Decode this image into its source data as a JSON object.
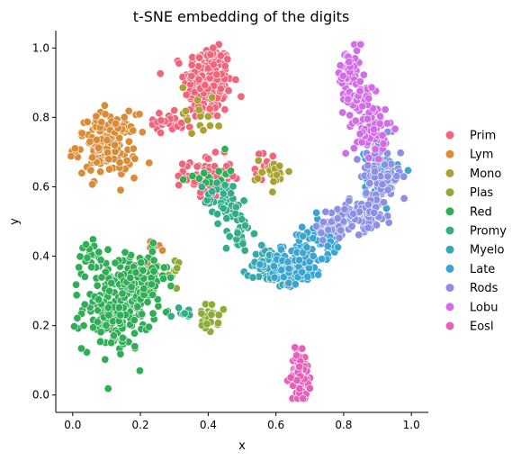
{
  "chart_data": {
    "type": "scatter",
    "title": "t-SNE embedding of the digits",
    "xlabel": "x",
    "ylabel": "y",
    "xlim": [
      -0.05,
      1.05
    ],
    "ylim": [
      -0.05,
      1.05
    ],
    "xticks": [
      "0.0",
      "0.2",
      "0.4",
      "0.6",
      "0.8",
      "1.0"
    ],
    "yticks": [
      "0.0",
      "0.2",
      "0.4",
      "0.6",
      "0.8",
      "1.0"
    ],
    "grid": false,
    "legend_position": "right",
    "series": [
      {
        "name": "Prim",
        "color": "#f0657a",
        "clusters": [
          {
            "cx": 0.4,
            "cy": 0.9,
            "sx": 0.035,
            "sy": 0.055,
            "n": 230
          },
          {
            "cx": 0.4,
            "cy": 0.63,
            "sx": 0.035,
            "sy": 0.03,
            "n": 70
          },
          {
            "cx": 0.29,
            "cy": 0.79,
            "sx": 0.04,
            "sy": 0.015,
            "n": 25
          },
          {
            "cx": 0.58,
            "cy": 0.66,
            "sx": 0.02,
            "sy": 0.02,
            "n": 15
          }
        ]
      },
      {
        "name": "Lym",
        "color": "#d98b35",
        "clusters": [
          {
            "cx": 0.1,
            "cy": 0.72,
            "sx": 0.045,
            "sy": 0.045,
            "n": 150
          },
          {
            "cx": 0.25,
            "cy": 0.4,
            "sx": 0.02,
            "sy": 0.03,
            "n": 10
          }
        ]
      },
      {
        "name": "Mono",
        "color": "#a8a230",
        "clusters": [
          {
            "cx": 0.59,
            "cy": 0.64,
            "sx": 0.025,
            "sy": 0.02,
            "n": 25
          },
          {
            "cx": 0.38,
            "cy": 0.82,
            "sx": 0.03,
            "sy": 0.04,
            "n": 15
          }
        ]
      },
      {
        "name": "Plas",
        "color": "#8dab38",
        "clusters": [
          {
            "cx": 0.4,
            "cy": 0.22,
            "sx": 0.015,
            "sy": 0.02,
            "n": 25
          },
          {
            "cx": 0.28,
            "cy": 0.36,
            "sx": 0.02,
            "sy": 0.03,
            "n": 10
          }
        ]
      },
      {
        "name": "Red",
        "color": "#2fae56",
        "clusters": [
          {
            "cx": 0.13,
            "cy": 0.25,
            "sx": 0.05,
            "sy": 0.06,
            "n": 200
          },
          {
            "cx": 0.2,
            "cy": 0.34,
            "sx": 0.04,
            "sy": 0.04,
            "n": 90
          },
          {
            "cx": 0.06,
            "cy": 0.4,
            "sx": 0.02,
            "sy": 0.03,
            "n": 20
          },
          {
            "cx": 0.4,
            "cy": 0.64,
            "sx": 0.03,
            "sy": 0.02,
            "n": 15
          }
        ]
      },
      {
        "name": "Promy",
        "color": "#33ac8a",
        "clusters": [
          {
            "cx": 0.45,
            "cy": 0.56,
            "sx": 0.03,
            "sy": 0.03,
            "n": 45
          },
          {
            "cx": 0.49,
            "cy": 0.47,
            "sx": 0.02,
            "sy": 0.03,
            "n": 25
          },
          {
            "cx": 0.33,
            "cy": 0.23,
            "sx": 0.015,
            "sy": 0.015,
            "n": 8
          }
        ]
      },
      {
        "name": "Myelo",
        "color": "#36a8b0",
        "clusters": [
          {
            "cx": 0.6,
            "cy": 0.35,
            "sx": 0.03,
            "sy": 0.02,
            "n": 60
          },
          {
            "cx": 0.57,
            "cy": 0.39,
            "sx": 0.02,
            "sy": 0.02,
            "n": 25
          }
        ]
      },
      {
        "name": "Late",
        "color": "#3ba5d2",
        "clusters": [
          {
            "cx": 0.66,
            "cy": 0.38,
            "sx": 0.04,
            "sy": 0.03,
            "n": 100
          },
          {
            "cx": 0.74,
            "cy": 0.46,
            "sx": 0.035,
            "sy": 0.03,
            "n": 60
          },
          {
            "cx": 0.91,
            "cy": 0.63,
            "sx": 0.025,
            "sy": 0.04,
            "n": 40
          }
        ]
      },
      {
        "name": "Rods",
        "color": "#8b8fe8",
        "clusters": [
          {
            "cx": 0.91,
            "cy": 0.63,
            "sx": 0.03,
            "sy": 0.05,
            "n": 90
          },
          {
            "cx": 0.86,
            "cy": 0.52,
            "sx": 0.035,
            "sy": 0.025,
            "n": 60
          },
          {
            "cx": 0.78,
            "cy": 0.49,
            "sx": 0.03,
            "sy": 0.025,
            "n": 40
          },
          {
            "cx": 0.88,
            "cy": 0.75,
            "sx": 0.02,
            "sy": 0.03,
            "n": 20
          }
        ]
      },
      {
        "name": "Lobu",
        "color": "#d36ce8",
        "clusters": [
          {
            "cx": 0.88,
            "cy": 0.77,
            "sx": 0.025,
            "sy": 0.04,
            "n": 70
          },
          {
            "cx": 0.82,
            "cy": 0.92,
            "sx": 0.02,
            "sy": 0.04,
            "n": 60
          },
          {
            "cx": 0.85,
            "cy": 0.85,
            "sx": 0.02,
            "sy": 0.02,
            "n": 25
          }
        ]
      },
      {
        "name": "Eosl",
        "color": "#e65fb8",
        "clusters": [
          {
            "cx": 0.67,
            "cy": 0.05,
            "sx": 0.012,
            "sy": 0.035,
            "n": 100
          }
        ]
      }
    ]
  }
}
